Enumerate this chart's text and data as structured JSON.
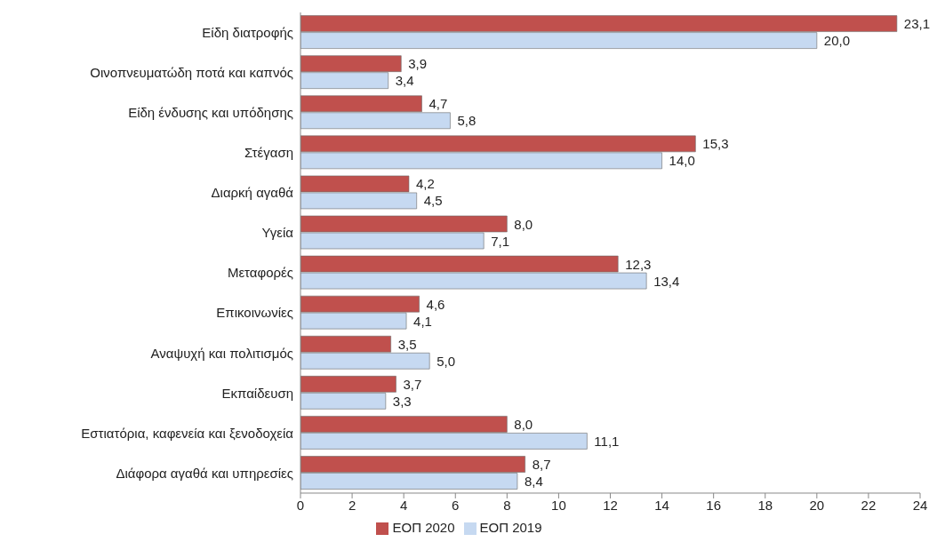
{
  "chart_data": {
    "type": "bar",
    "orientation": "horizontal",
    "categories": [
      "Είδη διατροφής",
      "Οινοπνευματώδη ποτά και καπνός",
      "Είδη ένδυσης και υπόδησης",
      "Στέγαση",
      "Διαρκή αγαθά",
      "Υγεία",
      "Μεταφορές",
      "Επικοινωνίες",
      "Αναψυχή και πολιτισμός",
      "Εκπαίδευση",
      "Εστιατόρια, καφενεία  και ξενοδοχεία",
      "Διάφορα αγαθά και υπηρεσίες"
    ],
    "series": [
      {
        "name": "ΕΟΠ 2020",
        "color": "#c0504d",
        "values": [
          23.1,
          3.9,
          4.7,
          15.3,
          4.2,
          8.0,
          12.3,
          4.6,
          3.5,
          3.7,
          8.0,
          8.7
        ],
        "value_labels": [
          "23,1",
          "3,9",
          "4,7",
          "15,3",
          "4,2",
          "8,0",
          "12,3",
          "4,6",
          "3,5",
          "3,7",
          "8,0",
          "8,7"
        ]
      },
      {
        "name": "ΕΟΠ 2019",
        "color": "#c6d9f1",
        "values": [
          20.0,
          3.4,
          5.8,
          14.0,
          4.5,
          7.1,
          13.4,
          4.1,
          5.0,
          3.3,
          11.1,
          8.4
        ],
        "value_labels": [
          "20,0",
          "3,4",
          "5,8",
          "14,0",
          "4,5",
          "7,1",
          "13,4",
          "4,1",
          "5,0",
          "3,3",
          "11,1",
          "8,4"
        ]
      }
    ],
    "xlim": [
      0,
      24
    ],
    "xticks": [
      0,
      2,
      4,
      6,
      8,
      10,
      12,
      14,
      16,
      18,
      20,
      22,
      24
    ],
    "legend": "bottom"
  }
}
